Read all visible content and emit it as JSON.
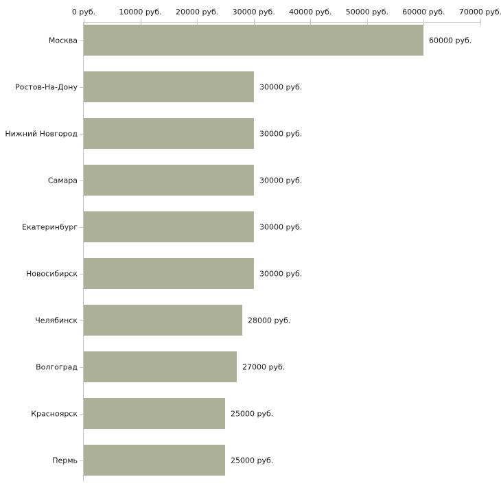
{
  "chart_data": {
    "type": "bar",
    "orientation": "horizontal",
    "title": "",
    "xlabel": "",
    "ylabel": "",
    "unit_suffix": " руб.",
    "categories": [
      "Москва",
      "Ростов-На-Дону",
      "Нижний Новгород",
      "Самара",
      "Екатеринбург",
      "Новосибирск",
      "Челябинск",
      "Волгоград",
      "Красноярск",
      "Пермь"
    ],
    "values": [
      60000,
      30000,
      30000,
      30000,
      30000,
      30000,
      28000,
      27000,
      25000,
      25000
    ],
    "value_labels": [
      "60000 руб.",
      "30000 руб.",
      "30000 руб.",
      "30000 руб.",
      "30000 руб.",
      "30000 руб.",
      "28000 руб.",
      "27000 руб.",
      "25000 руб.",
      "25000 руб."
    ],
    "x_ticks": [
      0,
      10000,
      20000,
      30000,
      40000,
      50000,
      60000,
      70000
    ],
    "x_tick_labels": [
      "0 руб.",
      "10000 руб.",
      "20000 руб.",
      "30000 руб.",
      "40000 руб.",
      "50000 руб.",
      "60000 руб.",
      "70000 руб."
    ],
    "xlim": [
      0,
      70000
    ],
    "grid": false,
    "legend": null,
    "colors": {
      "bar": "#abb096",
      "axis": "#c6c6c6",
      "x_tick": "#d2d2b4",
      "y_tick": "#c8c8c8",
      "text": "#1a1a1a"
    }
  }
}
